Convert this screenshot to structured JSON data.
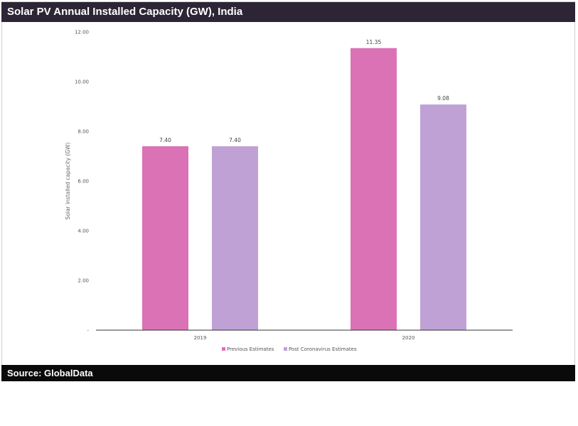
{
  "header": {
    "title": "Solar PV Annual Installed Capacity (GW), India"
  },
  "footer": {
    "source": "Source: GlobalData"
  },
  "chart_data": {
    "type": "bar",
    "title": "Solar PV Annual Installed Capacity (GW), India",
    "xlabel": "",
    "ylabel": "Solar installed capacity (GW)",
    "categories": [
      "2019",
      "2020"
    ],
    "series": [
      {
        "name": "Previous Estimates",
        "values": [
          7.4,
          11.35
        ],
        "labels": [
          "7.40",
          "11.35"
        ],
        "color": "#db72b6"
      },
      {
        "name": "Post Coronavirus Estimates",
        "values": [
          7.4,
          9.08
        ],
        "labels": [
          "7.40",
          "9.08"
        ],
        "color": "#bfa1d6"
      }
    ],
    "ylim": [
      0,
      12
    ],
    "yticks": [
      0,
      2,
      4,
      6,
      8,
      10,
      12
    ],
    "ytick_labels": [
      "-",
      "2.00",
      "4.00",
      "6.00",
      "8.00",
      "10.00",
      "12.00"
    ],
    "grid": false,
    "legend": "bottom"
  }
}
